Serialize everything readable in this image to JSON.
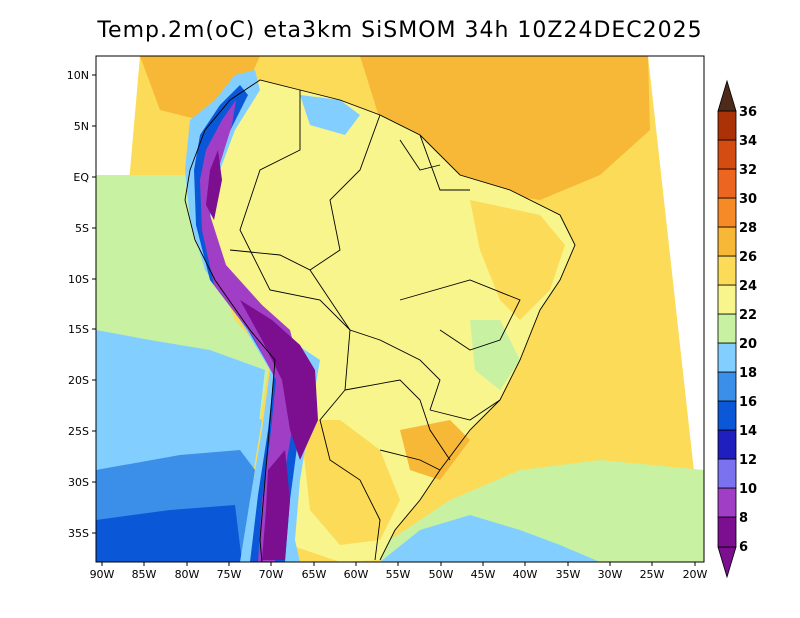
{
  "title": "Temp.2m(oC) eta3km SiSMOM 34h 10Z24DEC2025",
  "lat_labels": [
    "10N",
    "5N",
    "EQ",
    "5S",
    "10S",
    "15S",
    "20S",
    "25S",
    "30S",
    "35S"
  ],
  "lon_labels": [
    "90W",
    "85W",
    "80W",
    "75W",
    "70W",
    "65W",
    "60W",
    "55W",
    "50W",
    "45W",
    "40W",
    "35W",
    "30W",
    "25W",
    "20W"
  ],
  "colorbar": {
    "labels": [
      "6",
      "8",
      "10",
      "12",
      "14",
      "16",
      "18",
      "20",
      "22",
      "24",
      "26",
      "28",
      "30",
      "32",
      "34",
      "36"
    ],
    "colors": [
      "#7b0f8f",
      "#a13ec6",
      "#7a72ee",
      "#1f1fbf",
      "#0a58d8",
      "#3b8fe8",
      "#82cfff",
      "#c8f2a2",
      "#f7f58c",
      "#fbdb57",
      "#f6b836",
      "#f68a26",
      "#ec6521",
      "#d54c12",
      "#ab3207",
      "#7a2a15",
      "#4e2a1a"
    ]
  }
}
